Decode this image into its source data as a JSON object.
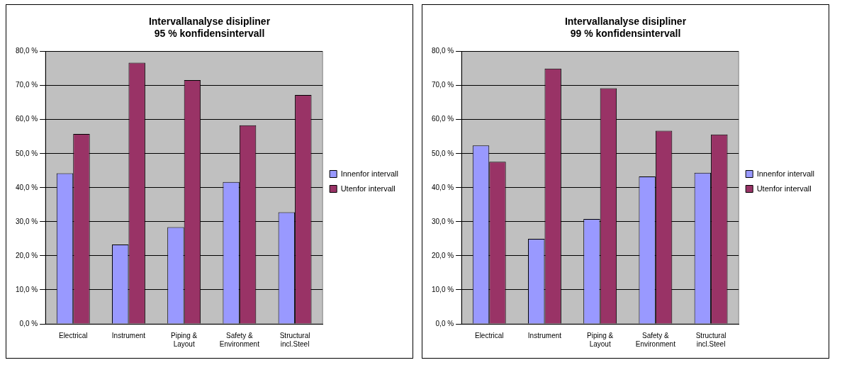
{
  "chart_data": [
    {
      "type": "bar",
      "title": "Intervallanalyse disipliner",
      "subtitle": "95 % konfidensintervall",
      "categories": [
        "Electrical",
        "Instrument",
        "Piping & Layout",
        "Safety & Environment",
        "Structural incl.Steel"
      ],
      "series": [
        {
          "name": "Innenfor intervall",
          "color": "#9999ff",
          "values": [
            44.2,
            23.3,
            28.4,
            41.7,
            32.8
          ]
        },
        {
          "name": "Utenfor intervall",
          "color": "#993366",
          "values": [
            55.8,
            76.7,
            71.6,
            58.3,
            67.2
          ]
        }
      ],
      "ylim": [
        0,
        80
      ],
      "yticks": [
        {
          "value": 0,
          "label": "0,0 %"
        },
        {
          "value": 10,
          "label": "10,0 %"
        },
        {
          "value": 20,
          "label": "20,0 %"
        },
        {
          "value": 30,
          "label": "30,0 %"
        },
        {
          "value": 40,
          "label": "40,0 %"
        },
        {
          "value": 50,
          "label": "50,0 %"
        },
        {
          "value": 60,
          "label": "60,0 %"
        },
        {
          "value": 70,
          "label": "70,0 %"
        },
        {
          "value": 80,
          "label": "80,0 %"
        }
      ],
      "grid": "y",
      "legend": "right"
    },
    {
      "type": "bar",
      "title": "Intervallanalyse disipliner",
      "subtitle": "99 % konfidensintervall",
      "categories": [
        "Electrical",
        "Instrument",
        "Piping & Layout",
        "Safety & Environment",
        "Structural incl.Steel"
      ],
      "series": [
        {
          "name": "Innenfor intervall",
          "color": "#9999ff",
          "values": [
            52.4,
            25.0,
            30.8,
            43.3,
            44.4
          ]
        },
        {
          "name": "Utenfor intervall",
          "color": "#993366",
          "values": [
            47.6,
            75.0,
            69.2,
            56.7,
            55.6
          ]
        }
      ],
      "ylim": [
        0,
        80
      ],
      "yticks": [
        {
          "value": 0,
          "label": "0,0 %"
        },
        {
          "value": 10,
          "label": "10,0 %"
        },
        {
          "value": 20,
          "label": "20,0 %"
        },
        {
          "value": 30,
          "label": "30,0 %"
        },
        {
          "value": 40,
          "label": "40,0 %"
        },
        {
          "value": 50,
          "label": "50,0 %"
        },
        {
          "value": 60,
          "label": "60,0 %"
        },
        {
          "value": 70,
          "label": "70,0 %"
        },
        {
          "value": 80,
          "label": "80,0 %"
        }
      ],
      "grid": "y",
      "legend": "right"
    }
  ]
}
